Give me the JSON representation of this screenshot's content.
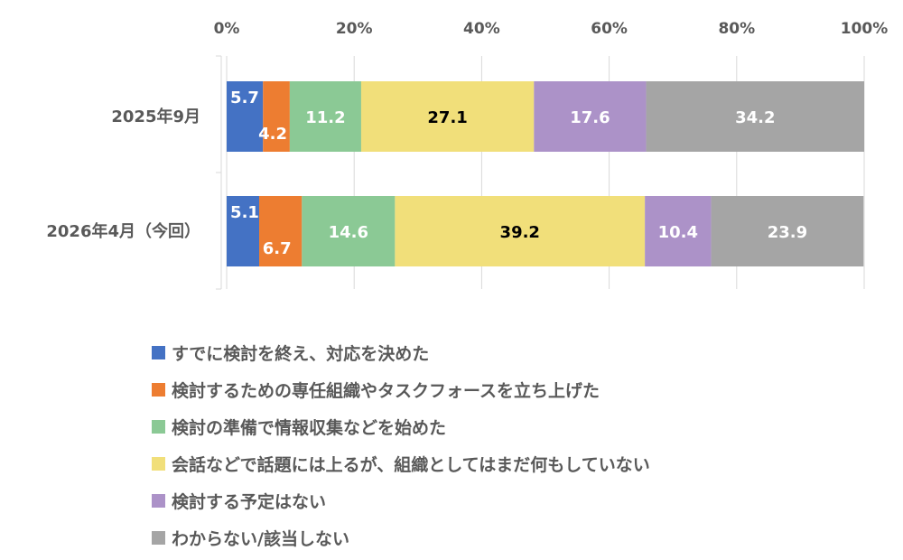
{
  "chart_data": {
    "type": "bar",
    "orientation": "horizontal",
    "stacked": true,
    "percent": true,
    "xlim": [
      0,
      100
    ],
    "ticks": [
      "0%",
      "20%",
      "40%",
      "60%",
      "80%",
      "100%"
    ],
    "tick_values": [
      0,
      20,
      40,
      60,
      80,
      100
    ],
    "categories": [
      "2025年9月",
      "2026年4月（今回）"
    ],
    "series": [
      {
        "name": "すでに検討を終え、対応を決めた",
        "color": "#4472C4",
        "values": [
          5.7,
          5.1
        ]
      },
      {
        "name": "検討するための専任組織やタスクフォースを立ち上げた",
        "color": "#ED7D31",
        "values": [
          4.2,
          6.7
        ]
      },
      {
        "name": "検討の準備で情報収集などを始めた",
        "color": "#8BC995",
        "values": [
          11.2,
          14.6
        ]
      },
      {
        "name": "会話などで話題には上るが、組織としてはまだ何もしていない",
        "color": "#F1DF7A",
        "values": [
          27.1,
          39.2
        ]
      },
      {
        "name": "検討する予定はない",
        "color": "#AC92C8",
        "values": [
          17.6,
          10.4
        ]
      },
      {
        "name": "わからない/該当しない",
        "color": "#A5A5A5",
        "values": [
          34.2,
          23.9
        ]
      }
    ],
    "grid": true,
    "legend_position": "bottom"
  }
}
